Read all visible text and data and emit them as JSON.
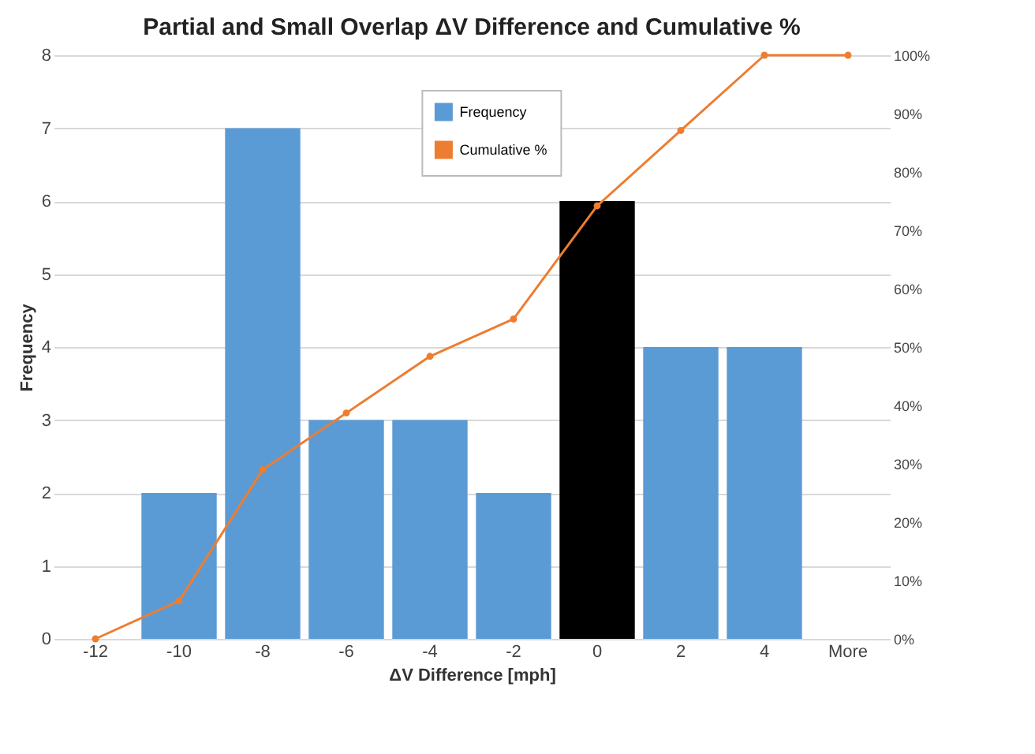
{
  "chart_data": {
    "type": "bar",
    "title": "Partial and Small Overlap ΔV Difference and Cumulative %",
    "xlabel": "ΔV Difference [mph]",
    "ylabel": "Frequency",
    "categories": [
      "-12",
      "-10",
      "-8",
      "-6",
      "-4",
      "-2",
      "0",
      "2",
      "4",
      "More"
    ],
    "series": [
      {
        "name": "Frequency",
        "color": "#5b9bd5",
        "colors": [
          "#5b9bd5",
          "#5b9bd5",
          "#5b9bd5",
          "#5b9bd5",
          "#5b9bd5",
          "#5b9bd5",
          "#000000",
          "#5b9bd5",
          "#5b9bd5",
          "#5b9bd5"
        ],
        "values": [
          0,
          2,
          7,
          3,
          3,
          2,
          6,
          4,
          4,
          0
        ]
      },
      {
        "name": "Cumulative %",
        "type": "line",
        "axis": "y2",
        "color": "#ed7d31",
        "marker": "circle",
        "values": [
          0,
          6.5,
          29,
          38.7,
          48.4,
          54.8,
          74.2,
          87.1,
          100,
          100
        ]
      }
    ],
    "ylim": [
      0,
      8
    ],
    "yticks": [
      0,
      1,
      2,
      3,
      4,
      5,
      6,
      7,
      8
    ],
    "y2lim": [
      0,
      100
    ],
    "y2ticks": [
      {
        "value": 0,
        "label": "0%"
      },
      {
        "value": 10,
        "label": "10%"
      },
      {
        "value": 20,
        "label": "20%"
      },
      {
        "value": 30,
        "label": "30%"
      },
      {
        "value": 40,
        "label": "40%"
      },
      {
        "value": 50,
        "label": "50%"
      },
      {
        "value": 60,
        "label": "60%"
      },
      {
        "value": 70,
        "label": "70%"
      },
      {
        "value": 80,
        "label": "80%"
      },
      {
        "value": 90,
        "label": "90%"
      },
      {
        "value": 100,
        "label": "100%"
      }
    ],
    "grid": "y",
    "legend": "top"
  }
}
